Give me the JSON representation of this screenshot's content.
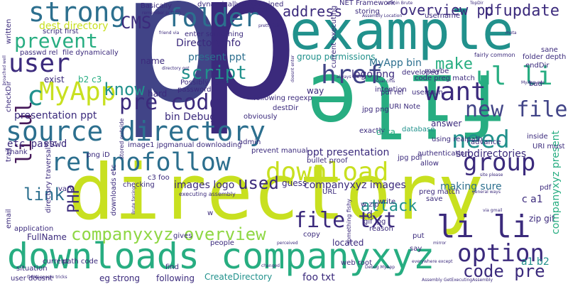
{
  "palette": {
    "purple": "#3b2a7c",
    "indigo": "#414487",
    "blue": "#2c6f8e",
    "teal": "#21918c",
    "green": "#27ad81",
    "lime": "#8fd744",
    "yellow": "#c8e020",
    "darkpurple": "#46195a"
  },
  "words": {
    "w001": "p",
    "w002": "p",
    "w003": "directory",
    "w004": "file",
    "w005": "example",
    "w006": "downloads companyxyz",
    "w007": "source directory",
    "w008": "rel nofollow",
    "w009": "download",
    "w010": "li li",
    "w011": "strong",
    "w012": "folder",
    "w013": "ul li",
    "w014": "user",
    "w015": "prevent",
    "w016": "MyApp",
    "w017": "pre code",
    "w018": "href",
    "w019": "want",
    "w020": "new file",
    "w021": "need",
    "w022": "group",
    "w023": "option",
    "w024": "file txt",
    "w025": "code pre",
    "w026": "attack",
    "w027": "companyxyz overview",
    "w028": "li ul",
    "w029": "CMS",
    "w030": "script",
    "w031": "address",
    "w032": "overview pdf",
    "w033": "p update",
    "w034": "know",
    "w035": "make",
    "w036": "link",
    "w037": "used",
    "w038": "PHP",
    "w039": "etc passwd",
    "w040": "c",
    "w041": "dest directory",
    "w042": "DirectoryInfo",
    "w043": "present ppt",
    "w044": "MyApp bin",
    "w045": "logo png",
    "w046": "group permissions",
    "w047": "bin Debug",
    "w048": "ppt presentation",
    "w049": "images logo",
    "w050": "companyxyz images",
    "w051": "making sure",
    "w052": "subdirectories",
    "w053": "a1 b2",
    "w054": "c a1",
    "w055": "zip gif",
    "w056": "companyxyz present",
    "w057": "presentation ppt",
    "w058": "hard",
    "w059": "name",
    "w060": "exist",
    "w061": "b2 c3",
    "w062": "located",
    "w063": "copy",
    "w064": "etc",
    "w065": "foo txt",
    "w066": "web root",
    "w067": "eg strong",
    "w068": "CreateDirectory",
    "w069": "following",
    "w070": "path code",
    "w071": "FullName",
    "w072": "user doesnt",
    "w073": "application",
    "w074": "people",
    "w075": "find",
    "w076": "URL",
    "w077": "guess",
    "w078": "w zip",
    "w079": "gif jpg",
    "w080": "d",
    "w081": "jpg png",
    "w082": "exactly",
    "w083": "answer",
    "w084": "database",
    "w085": "data",
    "w086": "allow",
    "w087": "checkDir",
    "w088": "script first",
    "w089": "passwd rel",
    "w090": "file dynamically",
    "w091": "developed",
    "w092": "folder depth",
    "w093": "current executing",
    "w094": "following regexp",
    "w095": "way",
    "w096": "pdf rel",
    "w097": "Basically",
    "w098": "dynamically determined",
    "w099": "NET Framework",
    "w100": "storing",
    "w101": "username",
    "w102": "iD path",
    "w103": "written",
    "w104": "downloads etc",
    "w105": "image1 jpg",
    "w106": "checking",
    "w107": "c3 foo",
    "w108": "png iD",
    "w109": "vary",
    "w110": "Thank",
    "w111": "directory traversal",
    "w112": "obviously",
    "w113": "destDir",
    "w114": "manual downloading",
    "w115": "bullet proof",
    "w116": "prevent manual",
    "w117": "authentication",
    "w118": "using realpath",
    "w119": "advance",
    "w120": "URI must",
    "w121": "email",
    "w122": "trail",
    "w123": "situation",
    "w124": "current",
    "w125": "reason",
    "w126": "put",
    "w127": "write",
    "w128": "something fishy",
    "w129": "save",
    "w130": "Possibly using",
    "w131": "password",
    "w132": "enter something",
    "w133": "endDir",
    "w134": "usersrun",
    "w135": "sane",
    "w136": "preg match",
    "w137": "code preg match",
    "w138": "maybe",
    "w139": "intention",
    "w140": "URI Note",
    "w141": "jpg pdf",
    "w142": "inside",
    "w143": "bad",
    "w144": "fairly common",
    "w145": "say",
    "w146": "pdf",
    "w147": "gives",
    "w148": "w",
    "w149": "admin",
    "w150": "stored outside",
    "w151": "executing assembly",
    "w152": "Brute forcing",
    "w153": "Debug MyApp",
    "w154": "everywhere except",
    "w155": "Assembly GetExecutingAssembly",
    "w156": "MyApp exe",
    "w157": "general ways",
    "w158": "site please",
    "w159": "via gmail",
    "w160": "remember putting",
    "w161": "friend via",
    "w162": "Assembly Location",
    "w163": "google tricks",
    "w164": "changed",
    "w165": "new",
    "w166": "broached well",
    "w167": "always theres",
    "w168": "doesnt enter",
    "w169": "usual cms",
    "w170": "admin Brute",
    "w171": "TopDir",
    "w172": "perceived",
    "w173": "mirror",
    "w174": "meta",
    "w175": "directory got",
    "w176": "pretty fair"
  }
}
